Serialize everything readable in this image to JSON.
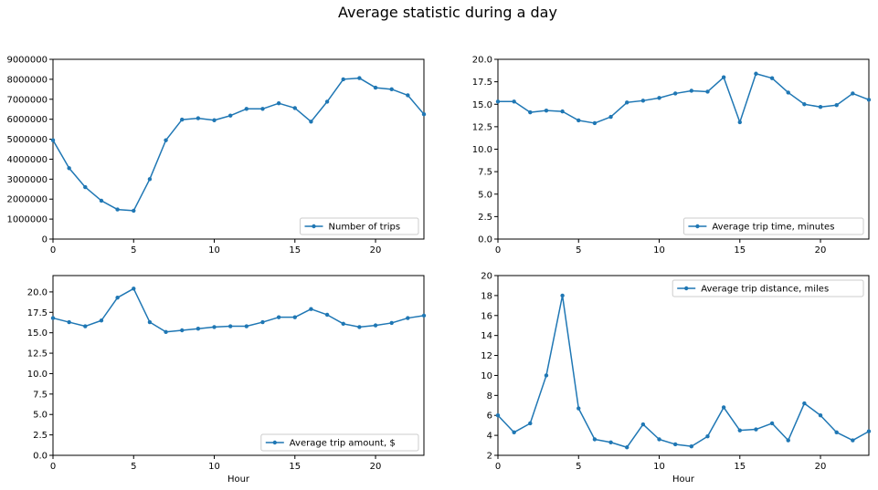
{
  "figure": {
    "suptitle": "Average statistic during a day",
    "line_color": "#1f77b4"
  },
  "chart_data": [
    {
      "type": "line",
      "xlabel": "",
      "ylabel": "",
      "xlim": [
        0,
        23
      ],
      "ylim": [
        0,
        9000000
      ],
      "xticks": [
        0,
        5,
        10,
        15,
        20
      ],
      "yticks": [
        0,
        1000000,
        2000000,
        3000000,
        4000000,
        5000000,
        6000000,
        7000000,
        8000000,
        9000000
      ],
      "ytick_decimals": 0,
      "grid": false,
      "legend_position": "lower-right",
      "series": [
        {
          "name": "Number of trips",
          "x": [
            0,
            1,
            2,
            3,
            4,
            5,
            6,
            7,
            8,
            9,
            10,
            11,
            12,
            13,
            14,
            15,
            16,
            17,
            18,
            19,
            20,
            21,
            22,
            23
          ],
          "values": [
            4950000,
            3550000,
            2600000,
            1920000,
            1480000,
            1420000,
            3000000,
            4950000,
            5980000,
            6050000,
            5950000,
            6180000,
            6520000,
            6520000,
            6800000,
            6560000,
            5880000,
            6880000,
            8000000,
            8060000,
            7580000,
            7500000,
            7200000,
            6250000
          ]
        }
      ]
    },
    {
      "type": "line",
      "xlabel": "",
      "ylabel": "",
      "xlim": [
        0,
        23
      ],
      "ylim": [
        0,
        20
      ],
      "xticks": [
        0,
        5,
        10,
        15,
        20
      ],
      "yticks": [
        0,
        2.5,
        5,
        7.5,
        10,
        12.5,
        15,
        17.5,
        20
      ],
      "ytick_decimals": 1,
      "grid": false,
      "legend_position": "lower-right",
      "series": [
        {
          "name": "Average trip time, minutes",
          "x": [
            0,
            1,
            2,
            3,
            4,
            5,
            6,
            7,
            8,
            9,
            10,
            11,
            12,
            13,
            14,
            15,
            16,
            17,
            18,
            19,
            20,
            21,
            22,
            23
          ],
          "values": [
            15.3,
            15.3,
            14.1,
            14.3,
            14.2,
            13.2,
            12.9,
            13.6,
            15.2,
            15.4,
            15.7,
            16.2,
            16.5,
            16.4,
            18.0,
            13.0,
            18.4,
            17.9,
            16.3,
            15.0,
            14.7,
            14.9,
            16.2,
            15.5
          ]
        }
      ]
    },
    {
      "type": "line",
      "xlabel": "Hour",
      "ylabel": "",
      "xlim": [
        0,
        23
      ],
      "ylim": [
        0,
        22
      ],
      "xticks": [
        0,
        5,
        10,
        15,
        20
      ],
      "yticks": [
        0,
        2.5,
        5,
        7.5,
        10,
        12.5,
        15,
        17.5,
        20
      ],
      "ytick_decimals": 1,
      "grid": false,
      "legend_position": "lower-right",
      "series": [
        {
          "name": "Average trip amount, $",
          "x": [
            0,
            1,
            2,
            3,
            4,
            5,
            6,
            7,
            8,
            9,
            10,
            11,
            12,
            13,
            14,
            15,
            16,
            17,
            18,
            19,
            20,
            21,
            22,
            23
          ],
          "values": [
            16.8,
            16.3,
            15.8,
            16.5,
            19.3,
            20.4,
            16.3,
            15.1,
            15.3,
            15.5,
            15.7,
            15.8,
            15.8,
            16.3,
            16.9,
            16.9,
            17.9,
            17.2,
            16.1,
            15.7,
            15.9,
            16.2,
            16.8,
            17.1
          ]
        }
      ]
    },
    {
      "type": "line",
      "xlabel": "Hour",
      "ylabel": "",
      "xlim": [
        0,
        23
      ],
      "ylim": [
        2,
        20
      ],
      "xticks": [
        0,
        5,
        10,
        15,
        20
      ],
      "yticks": [
        2,
        4,
        6,
        8,
        10,
        12,
        14,
        16,
        18,
        20
      ],
      "ytick_decimals": 0,
      "grid": false,
      "legend_position": "upper-right",
      "series": [
        {
          "name": "Average trip distance, miles",
          "x": [
            0,
            1,
            2,
            3,
            4,
            5,
            6,
            7,
            8,
            9,
            10,
            11,
            12,
            13,
            14,
            15,
            16,
            17,
            18,
            19,
            20,
            21,
            22,
            23
          ],
          "values": [
            6.0,
            4.3,
            5.2,
            10.0,
            18.0,
            6.7,
            3.6,
            3.3,
            2.8,
            5.1,
            3.6,
            3.1,
            2.9,
            3.9,
            6.8,
            4.5,
            4.6,
            5.2,
            3.5,
            7.2,
            6.0,
            4.3,
            3.5,
            4.4
          ]
        }
      ]
    }
  ]
}
